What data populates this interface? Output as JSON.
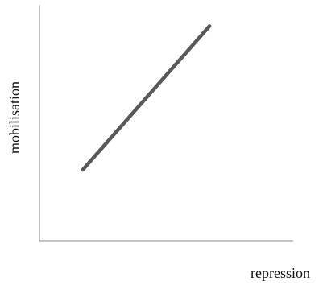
{
  "chart_data": {
    "type": "line",
    "title": "",
    "xlabel": "repression",
    "ylabel": "mobilisation",
    "xlim": [
      0,
      1
    ],
    "ylim": [
      0,
      1
    ],
    "grid": false,
    "legend": "none",
    "series": [
      {
        "x": [
          0.17,
          0.67
        ],
        "y": [
          0.3,
          0.91
        ]
      }
    ],
    "colors": {
      "axis": "#8c8c8c",
      "line": "#595959",
      "text": "#111111"
    }
  }
}
